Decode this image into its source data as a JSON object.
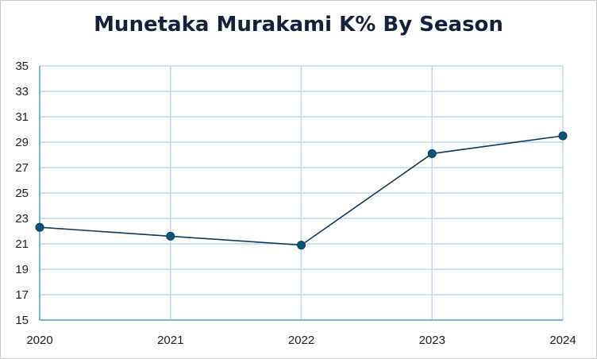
{
  "chart_data": {
    "type": "line",
    "title": "Munetaka Murakami K% By Season",
    "xlabel": "",
    "ylabel": "",
    "categories": [
      "2020",
      "2021",
      "2022",
      "2023",
      "2024"
    ],
    "series": [
      {
        "values": [
          22.3,
          21.6,
          20.9,
          28.1,
          29.5
        ]
      }
    ],
    "ylim": [
      15,
      35
    ],
    "yticks": [
      15,
      17,
      19,
      21,
      23,
      25,
      27,
      29,
      31,
      33,
      35
    ],
    "grid": true,
    "legend": "none",
    "colors": {
      "line": "#0b3a5e",
      "marker": "#0f5478",
      "grid": "#bcd6ee",
      "axis": "#7fb2dd"
    }
  }
}
